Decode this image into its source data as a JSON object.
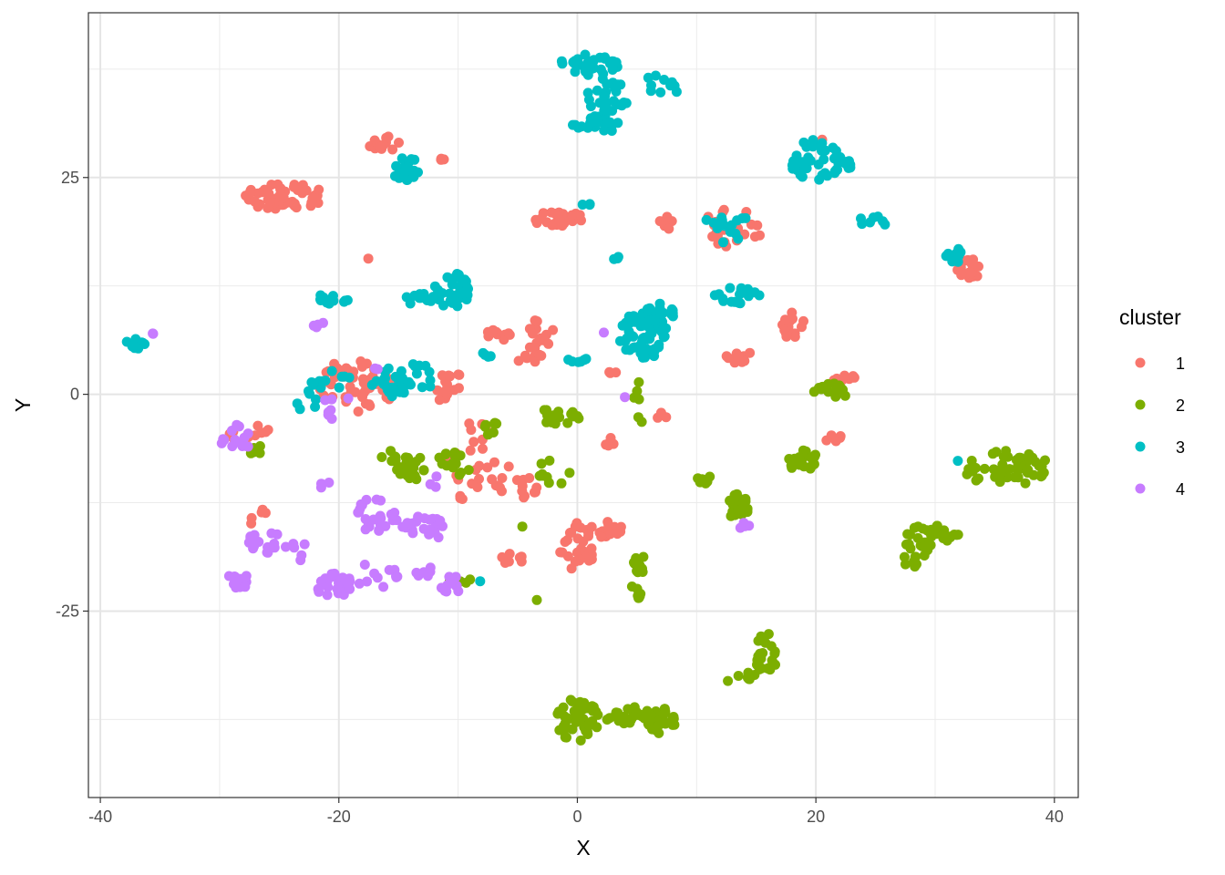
{
  "chart_data": {
    "type": "scatter",
    "title": "",
    "xlabel": "X",
    "ylabel": "Y",
    "xlim": [
      -41,
      42
    ],
    "ylim": [
      -46.5,
      44
    ],
    "x_ticks": [
      -40,
      -20,
      0,
      20,
      40
    ],
    "y_ticks": [
      -25,
      0,
      25
    ],
    "grid": true,
    "legend": {
      "title": "cluster",
      "position": "right"
    },
    "series": [
      {
        "name": "1",
        "color": "#F8766D",
        "clusters": [
          {
            "cx": -24.5,
            "cy": 22.8,
            "rx": 3.4,
            "ry": 1.6,
            "n": 55
          },
          {
            "cx": -16.0,
            "cy": 29.0,
            "rx": 1.8,
            "ry": 0.8,
            "n": 14
          },
          {
            "cx": -11.2,
            "cy": 26.8,
            "rx": 0.6,
            "ry": 0.5,
            "n": 3
          },
          {
            "cx": -1.5,
            "cy": 20.2,
            "rx": 2.2,
            "ry": 0.9,
            "n": 26
          },
          {
            "cx": 13.0,
            "cy": 19.2,
            "rx": 2.6,
            "ry": 2.2,
            "n": 22
          },
          {
            "cx": 33.0,
            "cy": 14.5,
            "rx": 1.2,
            "ry": 1.1,
            "n": 16
          },
          {
            "cx": 20.5,
            "cy": 29.3,
            "rx": 0.3,
            "ry": 0.3,
            "n": 1
          },
          {
            "cx": 18.0,
            "cy": 8.0,
            "rx": 1.0,
            "ry": 1.6,
            "n": 14
          },
          {
            "cx": 13.5,
            "cy": 4.3,
            "rx": 1.2,
            "ry": 0.8,
            "n": 9
          },
          {
            "cx": 22.0,
            "cy": 2.0,
            "rx": 1.4,
            "ry": 0.6,
            "n": 9
          },
          {
            "cx": 21.5,
            "cy": -4.8,
            "rx": 0.9,
            "ry": 0.7,
            "n": 5
          },
          {
            "cx": -18.5,
            "cy": 1.0,
            "rx": 3.2,
            "ry": 3.2,
            "n": 48
          },
          {
            "cx": -11.0,
            "cy": 1.0,
            "rx": 1.8,
            "ry": 1.8,
            "n": 16
          },
          {
            "cx": -6.5,
            "cy": 7.0,
            "rx": 1.2,
            "ry": 0.8,
            "n": 10
          },
          {
            "cx": -3.0,
            "cy": 6.5,
            "rx": 1.2,
            "ry": 2.3,
            "n": 14
          },
          {
            "cx": -4.0,
            "cy": 4.2,
            "rx": 1.5,
            "ry": 0.5,
            "n": 8
          },
          {
            "cx": -8.5,
            "cy": -8.0,
            "rx": 2.8,
            "ry": 5.0,
            "n": 30
          },
          {
            "cx": -4.2,
            "cy": -10.5,
            "rx": 1.0,
            "ry": 1.5,
            "n": 10
          },
          {
            "cx": 0.0,
            "cy": -17.5,
            "rx": 1.5,
            "ry": 3.0,
            "n": 28
          },
          {
            "cx": 2.5,
            "cy": -15.0,
            "rx": 1.4,
            "ry": 1.8,
            "n": 12
          },
          {
            "cx": -5.5,
            "cy": -19.3,
            "rx": 1.2,
            "ry": 1.0,
            "n": 8
          },
          {
            "cx": 2.8,
            "cy": -5.8,
            "rx": 0.5,
            "ry": 1.0,
            "n": 5
          },
          {
            "cx": 7.2,
            "cy": -2.5,
            "rx": 0.8,
            "ry": 0.5,
            "n": 4
          },
          {
            "cx": -26.8,
            "cy": -14.0,
            "rx": 0.7,
            "ry": 1.6,
            "n": 5
          },
          {
            "cx": -27.5,
            "cy": -4.5,
            "rx": 1.8,
            "ry": 1.2,
            "n": 10
          },
          {
            "cx": -17.7,
            "cy": 15.6,
            "rx": 0.3,
            "ry": 0.3,
            "n": 1
          },
          {
            "cx": 7.7,
            "cy": 20.5,
            "rx": 1.0,
            "ry": 1.5,
            "n": 5
          },
          {
            "cx": 3.0,
            "cy": 2.5,
            "rx": 0.7,
            "ry": 0.7,
            "n": 3
          }
        ]
      },
      {
        "name": "2",
        "color": "#7CAE00",
        "clusters": [
          {
            "cx": 0.0,
            "cy": -37.5,
            "rx": 2.0,
            "ry": 2.5,
            "n": 45
          },
          {
            "cx": 4.5,
            "cy": -37.0,
            "rx": 2.5,
            "ry": 1.0,
            "n": 25
          },
          {
            "cx": 7.0,
            "cy": -37.8,
            "rx": 1.3,
            "ry": 1.6,
            "n": 25
          },
          {
            "cx": 15.8,
            "cy": -30.0,
            "rx": 1.0,
            "ry": 2.5,
            "n": 22
          },
          {
            "cx": 13.5,
            "cy": -32.5,
            "rx": 1.5,
            "ry": 0.8,
            "n": 8
          },
          {
            "cx": 28.5,
            "cy": -18.0,
            "rx": 1.2,
            "ry": 3.0,
            "n": 22
          },
          {
            "cx": 30.5,
            "cy": -16.0,
            "rx": 1.5,
            "ry": 1.0,
            "n": 20
          },
          {
            "cx": 36.0,
            "cy": -8.5,
            "rx": 3.8,
            "ry": 2.0,
            "n": 50
          },
          {
            "cx": 18.5,
            "cy": -7.5,
            "rx": 1.6,
            "ry": 1.5,
            "n": 25
          },
          {
            "cx": 21.5,
            "cy": 0.5,
            "rx": 1.8,
            "ry": 0.8,
            "n": 15
          },
          {
            "cx": 13.5,
            "cy": -13.0,
            "rx": 0.9,
            "ry": 1.5,
            "n": 30
          },
          {
            "cx": 10.5,
            "cy": -9.8,
            "rx": 1.0,
            "ry": 0.6,
            "n": 8
          },
          {
            "cx": 5.2,
            "cy": -19.5,
            "rx": 0.6,
            "ry": 1.2,
            "n": 12
          },
          {
            "cx": 5.0,
            "cy": -22.8,
            "rx": 0.8,
            "ry": 0.8,
            "n": 7
          },
          {
            "cx": -1.5,
            "cy": -2.5,
            "rx": 2.0,
            "ry": 1.0,
            "n": 18
          },
          {
            "cx": -2.0,
            "cy": -9.0,
            "rx": 1.5,
            "ry": 1.5,
            "n": 10
          },
          {
            "cx": -14.0,
            "cy": -8.5,
            "rx": 2.0,
            "ry": 1.5,
            "n": 22
          },
          {
            "cx": -10.5,
            "cy": -8.5,
            "rx": 1.5,
            "ry": 2.0,
            "n": 15
          },
          {
            "cx": -7.5,
            "cy": -4.0,
            "rx": 1.0,
            "ry": 1.0,
            "n": 8
          },
          {
            "cx": -10.0,
            "cy": -21.5,
            "rx": 1.2,
            "ry": 0.6,
            "n": 6
          },
          {
            "cx": -15.5,
            "cy": -7.5,
            "rx": 1.0,
            "ry": 1.0,
            "n": 6
          },
          {
            "cx": 5.0,
            "cy": 0.5,
            "rx": 0.4,
            "ry": 1.2,
            "n": 4
          },
          {
            "cx": 5.5,
            "cy": -2.8,
            "rx": 0.5,
            "ry": 0.4,
            "n": 2
          },
          {
            "cx": -27.0,
            "cy": -6.5,
            "rx": 0.8,
            "ry": 0.6,
            "n": 5
          },
          {
            "cx": -4.5,
            "cy": -15.5,
            "rx": 0.4,
            "ry": 0.4,
            "n": 1
          },
          {
            "cx": -3.5,
            "cy": -23.5,
            "rx": 0.3,
            "ry": 0.3,
            "n": 1
          }
        ]
      },
      {
        "name": "3",
        "color": "#00BFC4",
        "clusters": [
          {
            "cx": 1.0,
            "cy": 38.0,
            "rx": 2.5,
            "ry": 1.2,
            "n": 35
          },
          {
            "cx": 2.5,
            "cy": 34.0,
            "rx": 1.8,
            "ry": 2.5,
            "n": 30
          },
          {
            "cx": 1.5,
            "cy": 31.0,
            "rx": 2.0,
            "ry": 1.0,
            "n": 20
          },
          {
            "cx": 7.0,
            "cy": 35.5,
            "rx": 1.5,
            "ry": 1.5,
            "n": 10
          },
          {
            "cx": 20.0,
            "cy": 27.0,
            "rx": 2.2,
            "ry": 2.5,
            "n": 40
          },
          {
            "cx": 23.0,
            "cy": 26.5,
            "rx": 1.0,
            "ry": 0.6,
            "n": 6
          },
          {
            "cx": 31.5,
            "cy": 16.0,
            "rx": 0.9,
            "ry": 1.0,
            "n": 10
          },
          {
            "cx": 25.0,
            "cy": 20.0,
            "rx": 1.3,
            "ry": 0.8,
            "n": 7
          },
          {
            "cx": 5.5,
            "cy": 7.0,
            "rx": 2.0,
            "ry": 3.0,
            "n": 70
          },
          {
            "cx": 7.0,
            "cy": 9.0,
            "rx": 1.5,
            "ry": 1.5,
            "n": 20
          },
          {
            "cx": 13.5,
            "cy": 11.5,
            "rx": 2.0,
            "ry": 1.0,
            "n": 18
          },
          {
            "cx": 12.5,
            "cy": 19.5,
            "rx": 1.8,
            "ry": 2.0,
            "n": 15
          },
          {
            "cx": -10.5,
            "cy": 12.0,
            "rx": 1.5,
            "ry": 2.0,
            "n": 30
          },
          {
            "cx": -13.0,
            "cy": 11.0,
            "rx": 1.5,
            "ry": 0.8,
            "n": 10
          },
          {
            "cx": -14.5,
            "cy": 26.0,
            "rx": 1.2,
            "ry": 1.5,
            "n": 22
          },
          {
            "cx": -20.5,
            "cy": 11.0,
            "rx": 1.5,
            "ry": 0.6,
            "n": 12
          },
          {
            "cx": -16.0,
            "cy": 0.5,
            "rx": 1.5,
            "ry": 1.5,
            "n": 15
          },
          {
            "cx": -14.0,
            "cy": 2.0,
            "rx": 2.5,
            "ry": 1.5,
            "n": 20
          },
          {
            "cx": -20.5,
            "cy": 1.5,
            "rx": 1.8,
            "ry": 1.2,
            "n": 12
          },
          {
            "cx": -22.5,
            "cy": -1.0,
            "rx": 1.0,
            "ry": 1.5,
            "n": 6
          },
          {
            "cx": -37.0,
            "cy": 6.0,
            "rx": 0.8,
            "ry": 0.8,
            "n": 12
          },
          {
            "cx": 0.0,
            "cy": 4.0,
            "rx": 0.8,
            "ry": 0.5,
            "n": 6
          },
          {
            "cx": 0.8,
            "cy": 22.0,
            "rx": 0.5,
            "ry": 0.3,
            "n": 3
          },
          {
            "cx": 3.0,
            "cy": 15.7,
            "rx": 0.6,
            "ry": 0.3,
            "n": 3
          },
          {
            "cx": -7.5,
            "cy": 4.5,
            "rx": 0.7,
            "ry": 0.5,
            "n": 4
          },
          {
            "cx": 31.8,
            "cy": -7.6,
            "rx": 0.3,
            "ry": 0.3,
            "n": 1
          },
          {
            "cx": -8.0,
            "cy": -21.5,
            "rx": 0.3,
            "ry": 0.3,
            "n": 1
          }
        ]
      },
      {
        "name": "4",
        "color": "#C77CFF",
        "clusters": [
          {
            "cx": -28.5,
            "cy": -21.5,
            "rx": 1.0,
            "ry": 1.0,
            "n": 15
          },
          {
            "cx": -26.5,
            "cy": -16.5,
            "rx": 1.5,
            "ry": 2.0,
            "n": 15
          },
          {
            "cx": -23.5,
            "cy": -18.0,
            "rx": 1.0,
            "ry": 1.5,
            "n": 6
          },
          {
            "cx": -20.5,
            "cy": -22.0,
            "rx": 1.5,
            "ry": 1.5,
            "n": 25
          },
          {
            "cx": -19.0,
            "cy": -21.5,
            "rx": 1.0,
            "ry": 0.5,
            "n": 6
          },
          {
            "cx": -17.0,
            "cy": -14.0,
            "rx": 2.0,
            "ry": 2.0,
            "n": 25
          },
          {
            "cx": -13.0,
            "cy": -15.5,
            "rx": 2.0,
            "ry": 1.5,
            "n": 20
          },
          {
            "cx": -16.5,
            "cy": -20.5,
            "rx": 1.5,
            "ry": 2.0,
            "n": 10
          },
          {
            "cx": -13.0,
            "cy": -20.5,
            "rx": 1.0,
            "ry": 0.8,
            "n": 6
          },
          {
            "cx": -10.5,
            "cy": -22.0,
            "rx": 1.0,
            "ry": 1.0,
            "n": 10
          },
          {
            "cx": -28.5,
            "cy": -5.0,
            "rx": 1.5,
            "ry": 1.5,
            "n": 15
          },
          {
            "cx": -21.5,
            "cy": 8.0,
            "rx": 0.8,
            "ry": 0.3,
            "n": 4
          },
          {
            "cx": -20.0,
            "cy": -1.5,
            "rx": 1.5,
            "ry": 1.5,
            "n": 8
          },
          {
            "cx": -21.0,
            "cy": -10.5,
            "rx": 0.8,
            "ry": 0.5,
            "n": 3
          },
          {
            "cx": -12.0,
            "cy": -10.0,
            "rx": 0.5,
            "ry": 0.8,
            "n": 3
          },
          {
            "cx": -35.7,
            "cy": 7.0,
            "rx": 0.3,
            "ry": 0.3,
            "n": 2
          },
          {
            "cx": 2.4,
            "cy": 7.0,
            "rx": 0.3,
            "ry": 0.3,
            "n": 1
          },
          {
            "cx": 4.0,
            "cy": -0.4,
            "rx": 0.3,
            "ry": 0.3,
            "n": 1
          },
          {
            "cx": 14.0,
            "cy": -15.2,
            "rx": 0.6,
            "ry": 0.6,
            "n": 4
          },
          {
            "cx": -17.0,
            "cy": 3.0,
            "rx": 0.5,
            "ry": 0.5,
            "n": 2
          }
        ]
      }
    ]
  }
}
